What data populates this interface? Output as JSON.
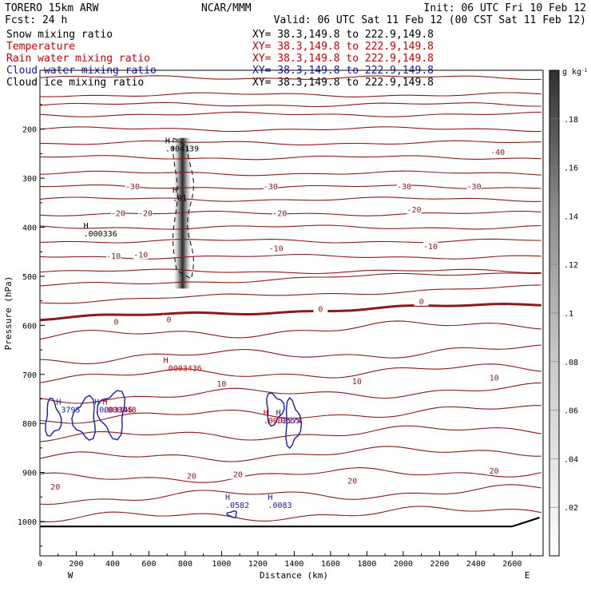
{
  "header": {
    "model": "TORERO  15km ARW",
    "institution": "NCAR/MMM",
    "init": "Init: 06 UTC Fri 10 Feb 12",
    "fcst": "Fcst:   24 h",
    "valid": "Valid: 06 UTC Sat 11 Feb 12 (00 CST Sat 11 Feb 12)"
  },
  "colors": {
    "temperature": "#8b1a1a",
    "rain": "#cc0000",
    "cloud_water": "#1a1ab4",
    "ice": "#000000",
    "terrain": "#000000",
    "text": "#000000"
  },
  "chart_data": {
    "type": "cross-section",
    "title": "Snow mixing ratio / Temperature / Rain water mixing ratio / Cloud water mixing ratio / Cloud ice mixing ratio",
    "xlabel": "Distance (km)",
    "ylabel": "Pressure (hPa)",
    "xlim": [
      0,
      2770
    ],
    "ylim": [
      1070,
      80
    ],
    "x_ticks": [
      0,
      200,
      400,
      600,
      800,
      1000,
      1200,
      1400,
      1600,
      1800,
      2000,
      2200,
      2400,
      2600
    ],
    "y_ticks": [
      200,
      300,
      400,
      500,
      600,
      700,
      800,
      900,
      1000
    ],
    "x_end_labels": {
      "left": "W",
      "right": "E"
    },
    "fields": [
      {
        "name": "Snow mixing ratio",
        "xy": "XY=  38.3,149.8 to 222.9,149.8",
        "color": "#000000"
      },
      {
        "name": "Temperature",
        "xy": "XY=  38.3,149.8 to 222.9,149.8",
        "color": "#cc0000"
      },
      {
        "name": "Rain water mixing ratio",
        "xy": "XY=  38.3,149.8 to 222.9,149.8",
        "color": "#cc0000"
      },
      {
        "name": "Cloud water mixing ratio",
        "xy": "XY=  38.3,149.8 to 222.9,149.8",
        "color": "#1a1ab4"
      },
      {
        "name": "Cloud ice mixing ratio",
        "xy": "XY=  38.3,149.8 to 222.9,149.8",
        "color": "#000000"
      }
    ],
    "colorbar": {
      "unit": "g kg",
      "unit_sup": "-1",
      "ticks": [
        0.02,
        0.04,
        0.06,
        0.08,
        0.1,
        0.12,
        0.14,
        0.16,
        0.18
      ],
      "tick_labels": [
        ".02",
        ".04",
        ".06",
        ".08",
        ".1",
        ".12",
        ".14",
        ".16",
        ".18"
      ],
      "range": [
        0,
        0.2
      ]
    },
    "isotherms": [
      {
        "base_p": 95
      },
      {
        "base_p": 130
      },
      {
        "base_p": 150
      },
      {
        "base_p": 170
      },
      {
        "base_p": 200
      },
      {
        "base_p": 228
      },
      {
        "base_p": 258
      },
      {
        "base_p": 290
      },
      {
        "base_p": 318
      },
      {
        "base_p": 343
      },
      {
        "base_p": 372
      },
      {
        "base_p": 400
      },
      {
        "base_p": 428
      },
      {
        "base_p": 460
      },
      {
        "base_p": 490
      },
      {
        "base_p": 520
      },
      {
        "base_p": 552
      },
      {
        "base_p": 586,
        "bold": true
      },
      {
        "base_p": 625
      },
      {
        "base_p": 668
      },
      {
        "base_p": 706
      },
      {
        "base_p": 748
      },
      {
        "base_p": 790
      },
      {
        "base_p": 830
      },
      {
        "base_p": 872
      },
      {
        "base_p": 914
      },
      {
        "base_p": 954
      },
      {
        "base_p": 995
      }
    ],
    "contour_labels": [
      {
        "text": "-40",
        "x": 2520,
        "p": 248
      },
      {
        "text": "-30",
        "x": 510,
        "p": 318
      },
      {
        "text": "-30",
        "x": 1270,
        "p": 318
      },
      {
        "text": "-30",
        "x": 2005,
        "p": 318
      },
      {
        "text": "-30",
        "x": 2390,
        "p": 318
      },
      {
        "text": "-20",
        "x": 430,
        "p": 372
      },
      {
        "text": "-20",
        "x": 580,
        "p": 372
      },
      {
        "text": "-20",
        "x": 1320,
        "p": 372
      },
      {
        "text": "-20",
        "x": 2060,
        "p": 365
      },
      {
        "text": "-10",
        "x": 405,
        "p": 459
      },
      {
        "text": "-10",
        "x": 555,
        "p": 457
      },
      {
        "text": "-10",
        "x": 1300,
        "p": 444
      },
      {
        "text": "-10",
        "x": 2150,
        "p": 440
      },
      {
        "text": "0",
        "x": 420,
        "p": 594
      },
      {
        "text": "0",
        "x": 710,
        "p": 589
      },
      {
        "text": "0",
        "x": 1545,
        "p": 568
      },
      {
        "text": "0",
        "x": 2100,
        "p": 552
      },
      {
        "text": "10",
        "x": 1000,
        "p": 720
      },
      {
        "text": "10",
        "x": 1745,
        "p": 715
      },
      {
        "text": "10",
        "x": 2500,
        "p": 708
      },
      {
        "text": "20",
        "x": 835,
        "p": 908
      },
      {
        "text": "20",
        "x": 1090,
        "p": 905
      },
      {
        "text": "20",
        "x": 1720,
        "p": 918
      },
      {
        "text": "20",
        "x": 2500,
        "p": 897
      },
      {
        "text": "20",
        "x": 85,
        "p": 930
      }
    ],
    "maxima_labels": [
      {
        "field": "snow",
        "text": ".004139",
        "x": 690,
        "p": 245
      },
      {
        "field": "ice",
        "text": ".01",
        "x": 730,
        "p": 346
      },
      {
        "field": "ice",
        "text": ".000336",
        "x": 240,
        "p": 419
      },
      {
        "field": "rain",
        "text": ".0003436",
        "x": 680,
        "p": 693
      },
      {
        "field": "cloud_water",
        "text": ".3795",
        "x": 90,
        "p": 778
      },
      {
        "field": "cloud_water",
        "text": ".0003345",
        "x": 300,
        "p": 778
      },
      {
        "field": "rain",
        "text": ".000348",
        "x": 345,
        "p": 778
      },
      {
        "field": "rain",
        "text": ".0002574",
        "x": 1230,
        "p": 800
      },
      {
        "field": "cloud_water",
        "text": ".0555",
        "x": 1300,
        "p": 800
      },
      {
        "field": "cloud_water",
        "text": ".0582",
        "x": 1020,
        "p": 972
      },
      {
        "field": "cloud_water",
        "text": ".0083",
        "x": 1255,
        "p": 972
      }
    ],
    "snow_max": 0.2,
    "snow_column": {
      "x_center": 785,
      "p_top": 218,
      "p_bottom": 525
    },
    "surface_pressure": 1010
  }
}
